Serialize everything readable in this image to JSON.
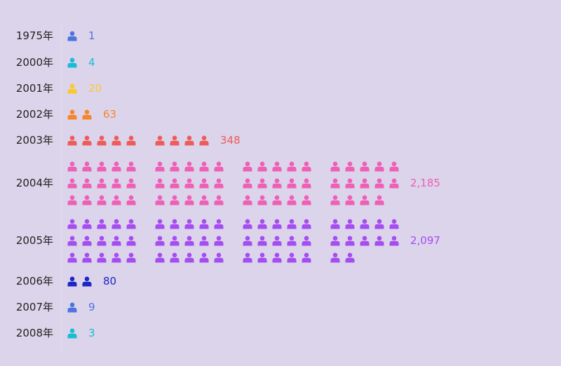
{
  "chart_data": {
    "type": "pictorial-bar",
    "title": "",
    "xlabel": "",
    "ylabel": "",
    "icon": "person-icon",
    "icon_unit": 20,
    "block_size": 5,
    "rows": [
      {
        "category": "1975年",
        "value": 1,
        "label": "1",
        "icons": 1,
        "lines": 1,
        "color": "#4e73df"
      },
      {
        "category": "2000年",
        "value": 4,
        "label": "4",
        "icons": 1,
        "lines": 1,
        "color": "#18bcd4"
      },
      {
        "category": "2001年",
        "value": 20,
        "label": "20",
        "icons": 1,
        "lines": 1,
        "color": "#f9c932"
      },
      {
        "category": "2002年",
        "value": 63,
        "label": "63",
        "icons": 2,
        "lines": 1,
        "color": "#f5862f"
      },
      {
        "category": "2003年",
        "value": 348,
        "label": "348",
        "icons": 9,
        "lines": 1,
        "color": "#ee5b5b"
      },
      {
        "category": "2004年",
        "value": 2185,
        "label": "2,185",
        "icons": 59,
        "lines": 3,
        "color": "#ee5fb6"
      },
      {
        "category": "2005年",
        "value": 2097,
        "label": "2,097",
        "icons": 57,
        "lines": 3,
        "color": "#a54df0"
      },
      {
        "category": "2006年",
        "value": 80,
        "label": "80",
        "icons": 2,
        "lines": 1,
        "color": "#1d27c6"
      },
      {
        "category": "2007年",
        "value": 9,
        "label": "9",
        "icons": 1,
        "lines": 1,
        "color": "#4e73df"
      },
      {
        "category": "2008年",
        "value": 3,
        "label": "3",
        "icons": 1,
        "lines": 1,
        "color": "#18bcd4"
      }
    ]
  }
}
